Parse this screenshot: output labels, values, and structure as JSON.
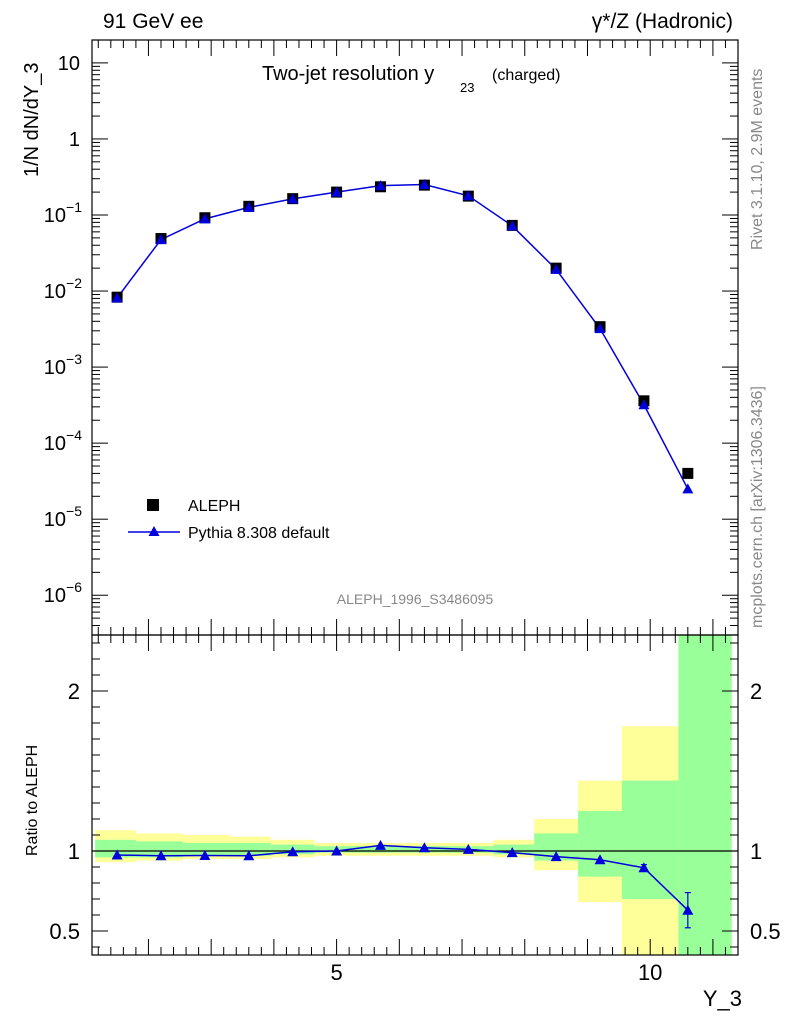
{
  "header": {
    "left_label": "91 GeV ee",
    "right_label": "γ*/Z (Hadronic)"
  },
  "side_labels": {
    "rivet": "Rivet 3.1.10,  2.9M events",
    "mcplots": "mcplots.cern.ch [arXiv:1306.3436]"
  },
  "analysis_id": "ALEPH_1996_S3486095",
  "chart_data": [
    {
      "type": "scatter",
      "panel": "main",
      "title_main": "Two-jet resolution y",
      "title_sub": "23",
      "title_suffix": "(charged)",
      "ylabel": "1/N dN/dY_3",
      "xlabel": "Y_3",
      "yscale": "log",
      "xlim": [
        1.1,
        11.4
      ],
      "ylim": [
        3e-07,
        20
      ],
      "yticks_major": [
        1e-06,
        1e-05,
        0.0001,
        0.001,
        0.01,
        0.1,
        1,
        10
      ],
      "ytick_labels": [
        "10^-6",
        "10^-5",
        "10^-4",
        "10^-3",
        "10^-2",
        "10^-1",
        "1",
        "10"
      ],
      "legend_position": "bottom-left",
      "series": [
        {
          "name": "ALEPH",
          "style": "black-square",
          "color": "#000000",
          "x": [
            1.5,
            2.2,
            2.9,
            3.6,
            4.3,
            5.0,
            5.7,
            6.4,
            7.1,
            7.8,
            8.5,
            9.2,
            9.9,
            10.6
          ],
          "y": [
            0.0083,
            0.049,
            0.092,
            0.13,
            0.164,
            0.2,
            0.235,
            0.247,
            0.177,
            0.073,
            0.02,
            0.0034,
            0.00036,
            4e-05
          ]
        },
        {
          "name": "Pythia 8.308 default",
          "style": "blue-triangle-line",
          "color": "#0000dd",
          "x": [
            1.5,
            2.2,
            2.9,
            3.6,
            4.3,
            5.0,
            5.7,
            6.4,
            7.1,
            7.8,
            8.5,
            9.2,
            9.9,
            10.6
          ],
          "y": [
            0.0081,
            0.0475,
            0.089,
            0.126,
            0.163,
            0.2,
            0.243,
            0.252,
            0.179,
            0.072,
            0.0193,
            0.0032,
            0.00032,
            2.5e-05
          ]
        }
      ]
    },
    {
      "type": "line",
      "panel": "ratio",
      "ylabel": "Ratio to ALEPH",
      "xlabel": "Y_3",
      "xlim": [
        1.1,
        11.4
      ],
      "ylim": [
        0.35,
        2.35
      ],
      "yticks_major": [
        0.5,
        1,
        2
      ],
      "ytick_labels": [
        "0.5",
        "1",
        "2"
      ],
      "xticks_major": [
        5,
        10
      ],
      "xtick_labels": [
        "5",
        "10"
      ],
      "bins": {
        "edges": [
          1.15,
          1.8,
          2.55,
          3.3,
          3.95,
          4.65,
          5.35,
          6.05,
          6.8,
          7.5,
          8.15,
          8.85,
          9.55,
          10.45,
          11.3
        ],
        "yellow_low": [
          0.93,
          0.94,
          0.95,
          0.95,
          0.96,
          0.97,
          0.97,
          0.97,
          0.97,
          0.96,
          0.88,
          0.68,
          0.35,
          0.35
        ],
        "yellow_high": [
          1.13,
          1.11,
          1.1,
          1.09,
          1.07,
          1.05,
          1.05,
          1.05,
          1.05,
          1.07,
          1.2,
          1.44,
          1.78,
          2.35
        ],
        "green_low": [
          0.96,
          0.96,
          0.97,
          0.97,
          0.98,
          0.99,
          0.99,
          0.99,
          0.99,
          0.98,
          0.94,
          0.84,
          0.7,
          0.35
        ],
        "green_high": [
          1.07,
          1.06,
          1.05,
          1.05,
          1.04,
          1.03,
          1.03,
          1.03,
          1.03,
          1.04,
          1.11,
          1.25,
          1.44,
          2.35
        ]
      },
      "series": [
        {
          "name": "Pythia 8.308 default",
          "color": "#0000dd",
          "x": [
            1.5,
            2.2,
            2.9,
            3.6,
            4.3,
            5.0,
            5.7,
            6.4,
            7.1,
            7.8,
            8.5,
            9.2,
            9.9,
            10.6
          ],
          "y": [
            0.975,
            0.97,
            0.972,
            0.97,
            0.995,
            1.0,
            1.035,
            1.02,
            1.01,
            0.99,
            0.965,
            0.945,
            0.895,
            0.63
          ],
          "err": [
            0,
            0,
            0,
            0,
            0,
            0,
            0,
            0,
            0,
            0,
            0,
            0,
            0.02,
            0.11
          ]
        }
      ]
    }
  ],
  "colors": {
    "yellow_band": "#ffff99",
    "green_band": "#99ff99",
    "mc_line": "#0000dd",
    "data": "#000000",
    "gray_text": "#888888"
  }
}
